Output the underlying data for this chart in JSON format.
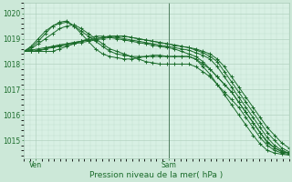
{
  "bg_color": "#cce8d8",
  "plot_bg": "#d8f0e4",
  "grid_color": "#aaccb8",
  "line_color": "#1a6b2a",
  "marker": "+",
  "xlabel": "Pression niveau de la mer( hPa )",
  "xtick_labels": [
    "Ven",
    "Sam"
  ],
  "yticks": [
    1015,
    1016,
    1017,
    1018,
    1019,
    1020
  ],
  "ylim": [
    1014.3,
    1020.4
  ],
  "xlim": [
    0,
    44
  ],
  "ven_x": 2,
  "sam_x": 24,
  "series": [
    [
      1018.5,
      1018.5,
      1018.55,
      1018.6,
      1018.65,
      1018.7,
      1018.75,
      1018.8,
      1018.85,
      1018.9,
      1018.95,
      1019.0,
      1019.05,
      1019.05,
      1019.0,
      1018.95,
      1018.9,
      1018.85,
      1018.8,
      1018.75,
      1018.7,
      1018.65,
      1018.6,
      1018.55,
      1018.45,
      1018.35,
      1018.2,
      1017.9,
      1017.5,
      1017.1,
      1016.7,
      1016.3,
      1015.9,
      1015.5,
      1015.1,
      1014.8,
      1014.6,
      1014.5
    ],
    [
      1018.5,
      1018.5,
      1018.5,
      1018.5,
      1018.5,
      1018.6,
      1018.7,
      1018.8,
      1018.9,
      1019.0,
      1019.1,
      1019.1,
      1019.05,
      1019.0,
      1018.95,
      1018.9,
      1018.85,
      1018.8,
      1018.75,
      1018.7,
      1018.65,
      1018.6,
      1018.5,
      1018.4,
      1018.3,
      1018.1,
      1017.8,
      1017.5,
      1017.2,
      1016.9,
      1016.5,
      1016.1,
      1015.7,
      1015.3,
      1014.9,
      1014.7,
      1014.55,
      1014.5
    ],
    [
      1018.5,
      1018.5,
      1018.5,
      1018.6,
      1018.7,
      1018.75,
      1018.8,
      1018.85,
      1018.9,
      1018.95,
      1019.0,
      1019.05,
      1019.1,
      1019.1,
      1019.1,
      1019.05,
      1019.0,
      1018.95,
      1018.9,
      1018.85,
      1018.8,
      1018.75,
      1018.7,
      1018.65,
      1018.55,
      1018.45,
      1018.3,
      1018.1,
      1017.7,
      1017.3,
      1016.9,
      1016.5,
      1016.1,
      1015.7,
      1015.3,
      1015.0,
      1014.7,
      1014.55
    ],
    [
      1018.5,
      1018.55,
      1018.6,
      1018.65,
      1018.7,
      1018.75,
      1018.8,
      1018.85,
      1018.9,
      1018.95,
      1019.0,
      1019.05,
      1019.1,
      1019.1,
      1019.1,
      1019.05,
      1019.0,
      1018.95,
      1018.9,
      1018.85,
      1018.8,
      1018.75,
      1018.7,
      1018.65,
      1018.6,
      1018.5,
      1018.4,
      1018.2,
      1017.9,
      1017.5,
      1017.1,
      1016.7,
      1016.3,
      1015.9,
      1015.5,
      1015.2,
      1014.9,
      1014.7
    ],
    [
      1018.5,
      1018.6,
      1018.8,
      1019.0,
      1019.2,
      1019.4,
      1019.5,
      1019.55,
      1019.4,
      1019.2,
      1019.0,
      1018.8,
      1018.6,
      1018.5,
      1018.4,
      1018.3,
      1018.2,
      1018.1,
      1018.05,
      1018.0,
      1018.0,
      1018.0,
      1018.0,
      1018.0,
      1017.9,
      1017.7,
      1017.5,
      1017.2,
      1016.9,
      1016.6,
      1016.3,
      1015.9,
      1015.5,
      1015.1,
      1014.8,
      1014.6,
      1014.5,
      1014.45
    ],
    [
      1018.5,
      1018.7,
      1019.0,
      1019.3,
      1019.5,
      1019.6,
      1019.65,
      1019.5,
      1019.3,
      1019.1,
      1018.9,
      1018.7,
      1018.5,
      1018.4,
      1018.35,
      1018.3,
      1018.3,
      1018.3,
      1018.3,
      1018.3,
      1018.3,
      1018.3,
      1018.3,
      1018.3,
      1018.2,
      1018.0,
      1017.8,
      1017.5,
      1017.2,
      1016.9,
      1016.5,
      1016.1,
      1015.7,
      1015.3,
      1014.95,
      1014.7,
      1014.55,
      1014.5
    ],
    [
      1018.5,
      1018.65,
      1018.9,
      1019.2,
      1019.5,
      1019.65,
      1019.7,
      1019.5,
      1019.2,
      1018.9,
      1018.6,
      1018.4,
      1018.3,
      1018.25,
      1018.2,
      1018.2,
      1018.25,
      1018.3,
      1018.35,
      1018.35,
      1018.3,
      1018.3,
      1018.3,
      1018.3,
      1018.2,
      1017.9,
      1017.6,
      1017.2,
      1016.8,
      1016.4,
      1016.0,
      1015.6,
      1015.2,
      1014.85,
      1014.6,
      1014.5,
      1014.45,
      1014.42
    ]
  ]
}
